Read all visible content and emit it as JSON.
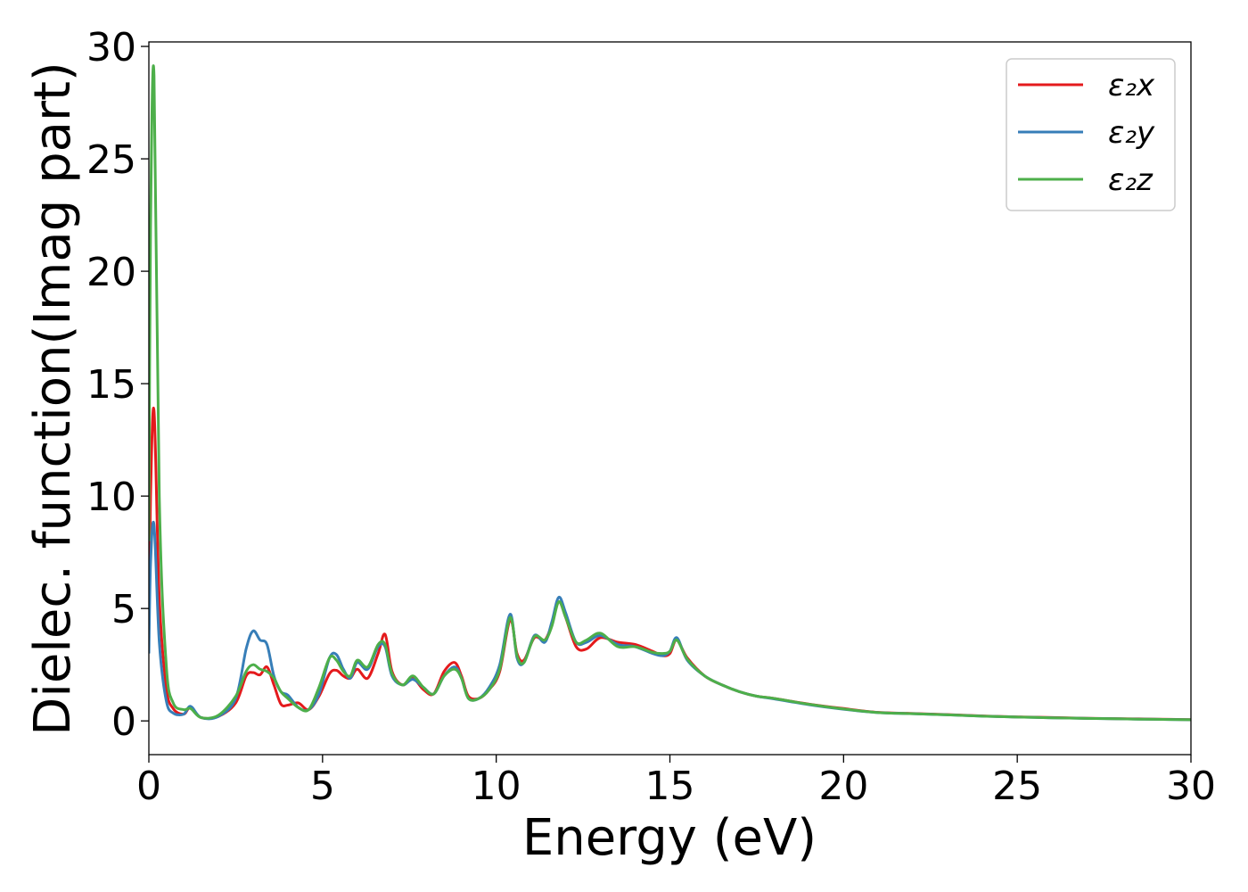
{
  "chart_data": {
    "type": "line",
    "title": "",
    "xlabel": "Energy (eV)",
    "ylabel": "Dielec. function(Imag part)",
    "xlim": [
      0,
      30
    ],
    "ylim": [
      -1.5,
      30.2
    ],
    "xticks": [
      0,
      5,
      10,
      15,
      20,
      25,
      30
    ],
    "yticks": [
      0,
      5,
      10,
      15,
      20,
      25,
      30
    ],
    "grid": false,
    "legend_position": "top-right",
    "series": [
      {
        "name": "ε₂x",
        "color": "#e41a1c",
        "x": [
          0,
          0.05,
          0.15,
          0.3,
          0.5,
          0.7,
          1.0,
          1.2,
          1.5,
          2.0,
          2.5,
          2.8,
          3.0,
          3.2,
          3.4,
          3.6,
          3.8,
          4.0,
          4.3,
          4.6,
          4.9,
          5.2,
          5.4,
          5.6,
          5.8,
          6.0,
          6.3,
          6.6,
          6.8,
          7.0,
          7.3,
          7.6,
          7.9,
          8.2,
          8.5,
          8.8,
          9.0,
          9.2,
          9.5,
          9.8,
          10.1,
          10.4,
          10.6,
          10.8,
          11.1,
          11.4,
          11.6,
          11.8,
          12.0,
          12.3,
          12.6,
          13.0,
          13.5,
          14.0,
          14.5,
          14.8,
          15.0,
          15.2,
          15.5,
          16.0,
          16.5,
          17.0,
          17.5,
          18.0,
          19.0,
          20.0,
          21.0,
          22.0,
          23.0,
          24.0,
          25.0,
          26.0,
          27.0,
          28.0,
          29.0,
          30.0
        ],
        "y": [
          4.0,
          10.0,
          13.8,
          5.5,
          1.5,
          0.55,
          0.3,
          0.6,
          0.15,
          0.2,
          0.8,
          2.0,
          2.15,
          2.05,
          2.4,
          1.6,
          0.75,
          0.7,
          0.8,
          0.5,
          1.1,
          2.1,
          2.25,
          2.0,
          1.9,
          2.3,
          1.9,
          3.0,
          3.85,
          2.2,
          1.6,
          1.9,
          1.4,
          1.2,
          2.2,
          2.6,
          2.0,
          1.1,
          1.0,
          1.4,
          2.2,
          4.5,
          3.0,
          2.7,
          3.7,
          3.6,
          4.3,
          5.3,
          4.6,
          3.3,
          3.2,
          3.7,
          3.5,
          3.4,
          3.1,
          2.9,
          3.0,
          3.6,
          2.8,
          2.0,
          1.6,
          1.3,
          1.1,
          1.0,
          0.75,
          0.55,
          0.38,
          0.33,
          0.28,
          0.22,
          0.18,
          0.15,
          0.12,
          0.1,
          0.08,
          0.06
        ]
      },
      {
        "name": "ε₂y",
        "color": "#377eb8",
        "x": [
          0,
          0.05,
          0.15,
          0.3,
          0.5,
          0.7,
          1.0,
          1.2,
          1.5,
          2.0,
          2.5,
          2.8,
          3.0,
          3.2,
          3.4,
          3.6,
          3.8,
          4.0,
          4.3,
          4.6,
          4.9,
          5.2,
          5.4,
          5.6,
          5.8,
          6.0,
          6.3,
          6.6,
          6.8,
          7.0,
          7.3,
          7.6,
          7.9,
          8.2,
          8.5,
          8.8,
          9.0,
          9.2,
          9.5,
          9.8,
          10.1,
          10.4,
          10.6,
          10.8,
          11.1,
          11.4,
          11.6,
          11.8,
          12.0,
          12.3,
          12.6,
          13.0,
          13.5,
          14.0,
          14.5,
          14.8,
          15.0,
          15.2,
          15.5,
          16.0,
          16.5,
          17.0,
          17.5,
          18.0,
          19.0,
          20.0,
          21.0,
          22.0,
          23.0,
          24.0,
          25.0,
          26.0,
          27.0,
          28.0,
          29.0,
          30.0
        ],
        "y": [
          3.0,
          7.0,
          8.7,
          3.5,
          0.9,
          0.35,
          0.3,
          0.65,
          0.15,
          0.2,
          1.0,
          3.2,
          4.0,
          3.6,
          3.4,
          2.0,
          1.3,
          1.15,
          0.6,
          0.5,
          1.2,
          2.8,
          2.95,
          2.3,
          1.9,
          2.6,
          2.3,
          3.3,
          3.3,
          2.0,
          1.6,
          1.85,
          1.5,
          1.2,
          2.0,
          2.4,
          1.9,
          1.0,
          1.0,
          1.5,
          2.5,
          4.75,
          2.8,
          2.6,
          3.8,
          3.5,
          4.4,
          5.5,
          4.8,
          3.5,
          3.5,
          3.8,
          3.4,
          3.3,
          3.0,
          2.9,
          3.1,
          3.7,
          2.7,
          2.0,
          1.6,
          1.3,
          1.1,
          0.98,
          0.72,
          0.52,
          0.37,
          0.32,
          0.27,
          0.21,
          0.17,
          0.14,
          0.11,
          0.09,
          0.07,
          0.05
        ]
      },
      {
        "name": "ε₂z",
        "color": "#4daf4a",
        "x": [
          0,
          0.05,
          0.15,
          0.3,
          0.5,
          0.7,
          1.0,
          1.2,
          1.5,
          2.0,
          2.5,
          2.8,
          3.0,
          3.2,
          3.4,
          3.6,
          3.8,
          4.0,
          4.3,
          4.6,
          4.9,
          5.2,
          5.4,
          5.6,
          5.8,
          6.0,
          6.3,
          6.6,
          6.8,
          7.0,
          7.3,
          7.6,
          7.9,
          8.2,
          8.5,
          8.8,
          9.0,
          9.2,
          9.5,
          9.8,
          10.1,
          10.4,
          10.6,
          10.8,
          11.1,
          11.4,
          11.6,
          11.8,
          12.0,
          12.3,
          12.6,
          13.0,
          13.5,
          14.0,
          14.5,
          14.8,
          15.0,
          15.2,
          15.5,
          16.0,
          16.5,
          17.0,
          17.5,
          18.0,
          19.0,
          20.0,
          21.0,
          22.0,
          23.0,
          24.0,
          25.0,
          26.0,
          27.0,
          28.0,
          29.0,
          30.0
        ],
        "y": [
          8.0,
          22.0,
          28.7,
          10.0,
          2.5,
          0.8,
          0.5,
          0.55,
          0.15,
          0.25,
          1.1,
          2.2,
          2.5,
          2.3,
          2.2,
          1.9,
          1.3,
          1.0,
          0.6,
          0.5,
          1.5,
          2.8,
          2.7,
          2.2,
          2.0,
          2.7,
          2.4,
          3.4,
          3.4,
          2.1,
          1.6,
          2.0,
          1.5,
          1.2,
          2.0,
          2.3,
          1.9,
          1.0,
          1.0,
          1.4,
          2.3,
          4.6,
          2.9,
          2.6,
          3.75,
          3.6,
          4.2,
          5.3,
          4.6,
          3.5,
          3.6,
          3.9,
          3.3,
          3.3,
          3.05,
          3.0,
          3.1,
          3.6,
          2.75,
          2.0,
          1.6,
          1.3,
          1.1,
          1.0,
          0.74,
          0.53,
          0.37,
          0.32,
          0.27,
          0.21,
          0.17,
          0.14,
          0.11,
          0.09,
          0.07,
          0.05
        ]
      }
    ]
  }
}
